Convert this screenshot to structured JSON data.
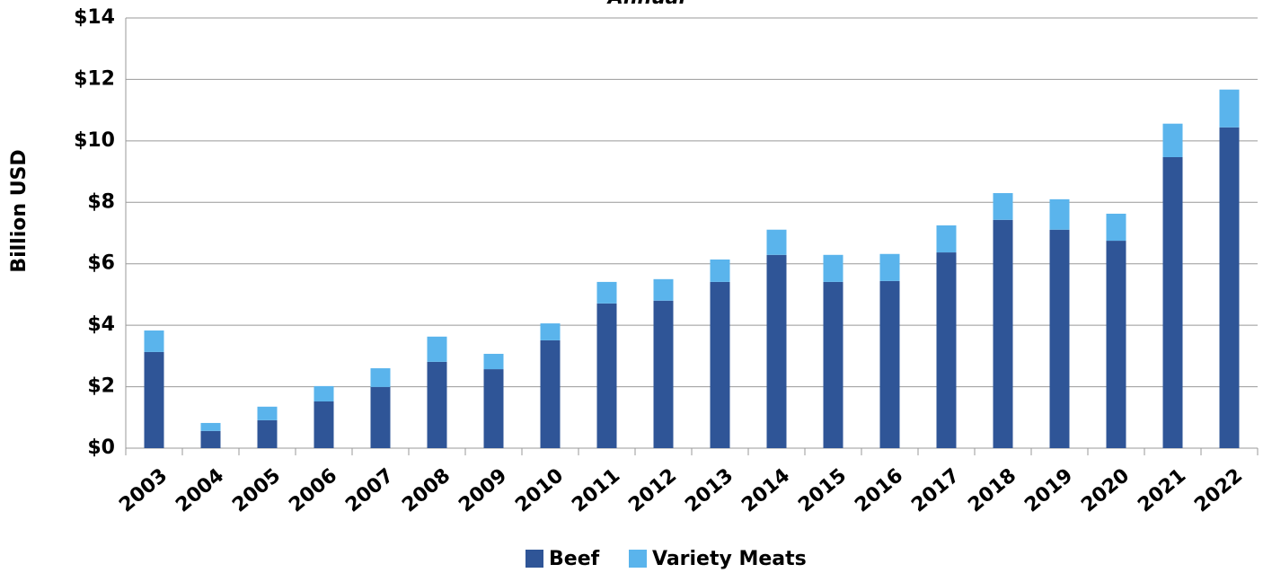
{
  "chart_data": {
    "type": "stacked_bar",
    "title": "Annual",
    "y_label": "Billion USD",
    "categories": [
      "2003",
      "2004",
      "2005",
      "2006",
      "2007",
      "2008",
      "2009",
      "2010",
      "2011",
      "2012",
      "2013",
      "2014",
      "2015",
      "2016",
      "2017",
      "2018",
      "2019",
      "2020",
      "2021",
      "2022"
    ],
    "series": [
      {
        "name": "Beef",
        "color": "#2f5597",
        "values": [
          3.13,
          0.56,
          0.91,
          1.52,
          1.99,
          2.81,
          2.57,
          3.51,
          4.71,
          4.8,
          5.41,
          6.29,
          5.41,
          5.44,
          6.37,
          7.43,
          7.11,
          6.75,
          9.47,
          10.44
        ]
      },
      {
        "name": "Variety Meats",
        "color": "#5ab4ec",
        "values": [
          0.7,
          0.26,
          0.44,
          0.5,
          0.61,
          0.82,
          0.5,
          0.55,
          0.7,
          0.7,
          0.73,
          0.82,
          0.88,
          0.88,
          0.88,
          0.87,
          0.99,
          0.88,
          1.09,
          1.23
        ]
      }
    ],
    "ylim": [
      0,
      14
    ],
    "yticks": [
      {
        "value": 0,
        "label": "$0"
      },
      {
        "value": 2,
        "label": "$2"
      },
      {
        "value": 4,
        "label": "$4"
      },
      {
        "value": 6,
        "label": "$6"
      },
      {
        "value": 8,
        "label": "$8"
      },
      {
        "value": 10,
        "label": "$10"
      },
      {
        "value": 12,
        "label": "$12"
      },
      {
        "value": 14,
        "label": "$14"
      }
    ],
    "grid": true,
    "legend": "bottom"
  }
}
